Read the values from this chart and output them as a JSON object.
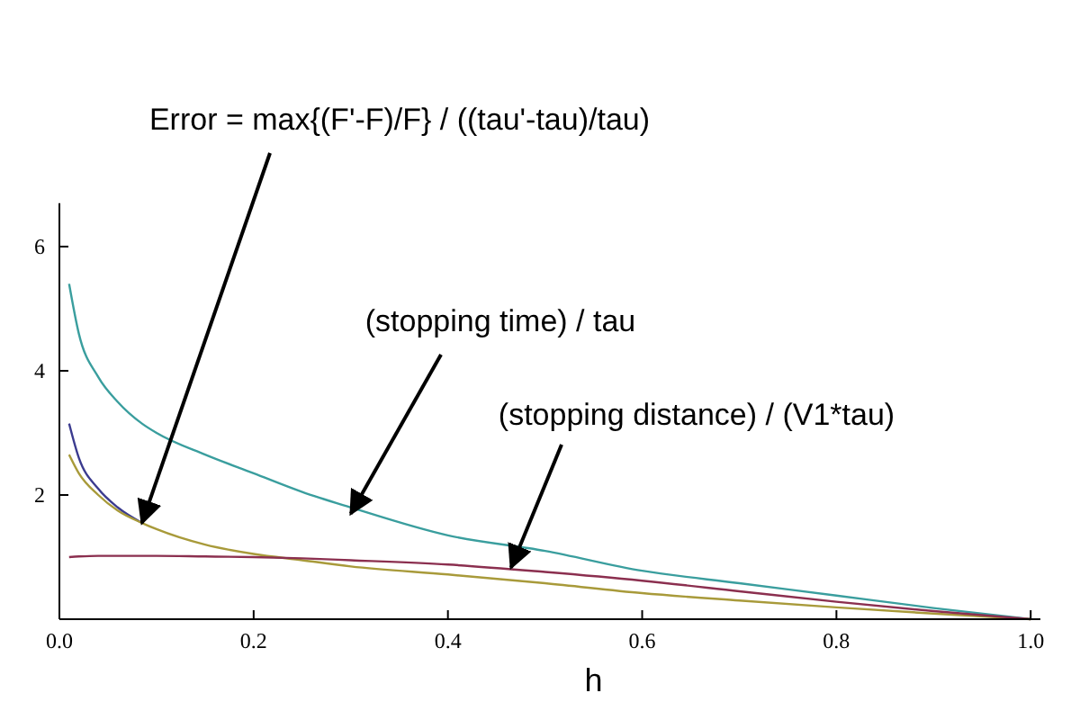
{
  "chart_data": {
    "type": "line",
    "xlabel": "h",
    "xlim": [
      0,
      1.01
    ],
    "ylim": [
      0,
      6.7
    ],
    "xticks": [
      {
        "value": 0,
        "label": "0.0"
      },
      {
        "value": 0.2,
        "label": "0.2"
      },
      {
        "value": 0.4,
        "label": "0.4"
      },
      {
        "value": 0.6,
        "label": "0.6"
      },
      {
        "value": 0.8,
        "label": "0.8"
      },
      {
        "value": 1,
        "label": "1.0"
      }
    ],
    "yticks": [
      2,
      4,
      6
    ],
    "x": [
      0.01,
      0.02,
      0.04,
      0.06,
      0.085,
      0.1,
      0.15,
      0.2,
      0.25,
      0.3,
      0.4,
      0.5,
      0.6,
      0.7,
      0.8,
      0.9,
      1.0
    ],
    "series": [
      {
        "color": "#3a9e9e",
        "values": [
          5.4,
          4.6,
          3.9,
          3.5,
          3.15,
          3.0,
          2.65,
          2.35,
          2.05,
          1.8,
          1.35,
          1.1,
          0.78,
          0.58,
          0.38,
          0.18,
          0
        ]
      },
      {
        "color": "#3b3b8f",
        "values": [
          3.15,
          2.6,
          2.1,
          1.8,
          1.55,
          null,
          null,
          null,
          null,
          null,
          null,
          null,
          null,
          null,
          null,
          null,
          null
        ]
      },
      {
        "color": "#a89a3a",
        "values": [
          2.65,
          2.35,
          2.0,
          1.75,
          1.55,
          1.45,
          1.2,
          1.05,
          0.95,
          0.85,
          0.72,
          0.58,
          0.42,
          0.3,
          0.19,
          0.09,
          0
        ]
      },
      {
        "color": "#8b2f4f",
        "values": [
          1.0,
          1.01,
          1.02,
          1.02,
          1.02,
          1.02,
          1.01,
          1.0,
          0.98,
          0.95,
          0.88,
          0.76,
          0.62,
          0.45,
          0.28,
          0.13,
          0
        ]
      }
    ],
    "annotations": [
      {
        "text": "Error = max{(F'-F)/F} / ((tau'-tau)/tau)",
        "x": 0.085,
        "y": 1.55
      },
      {
        "text": "(stopping time) / tau",
        "x": 0.3,
        "y": 1.7
      },
      {
        "text": "(stopping distance) / (V1*tau)",
        "x": 0.465,
        "y": 0.83
      }
    ],
    "grid": false,
    "marker": "none",
    "line_style": "solid"
  }
}
